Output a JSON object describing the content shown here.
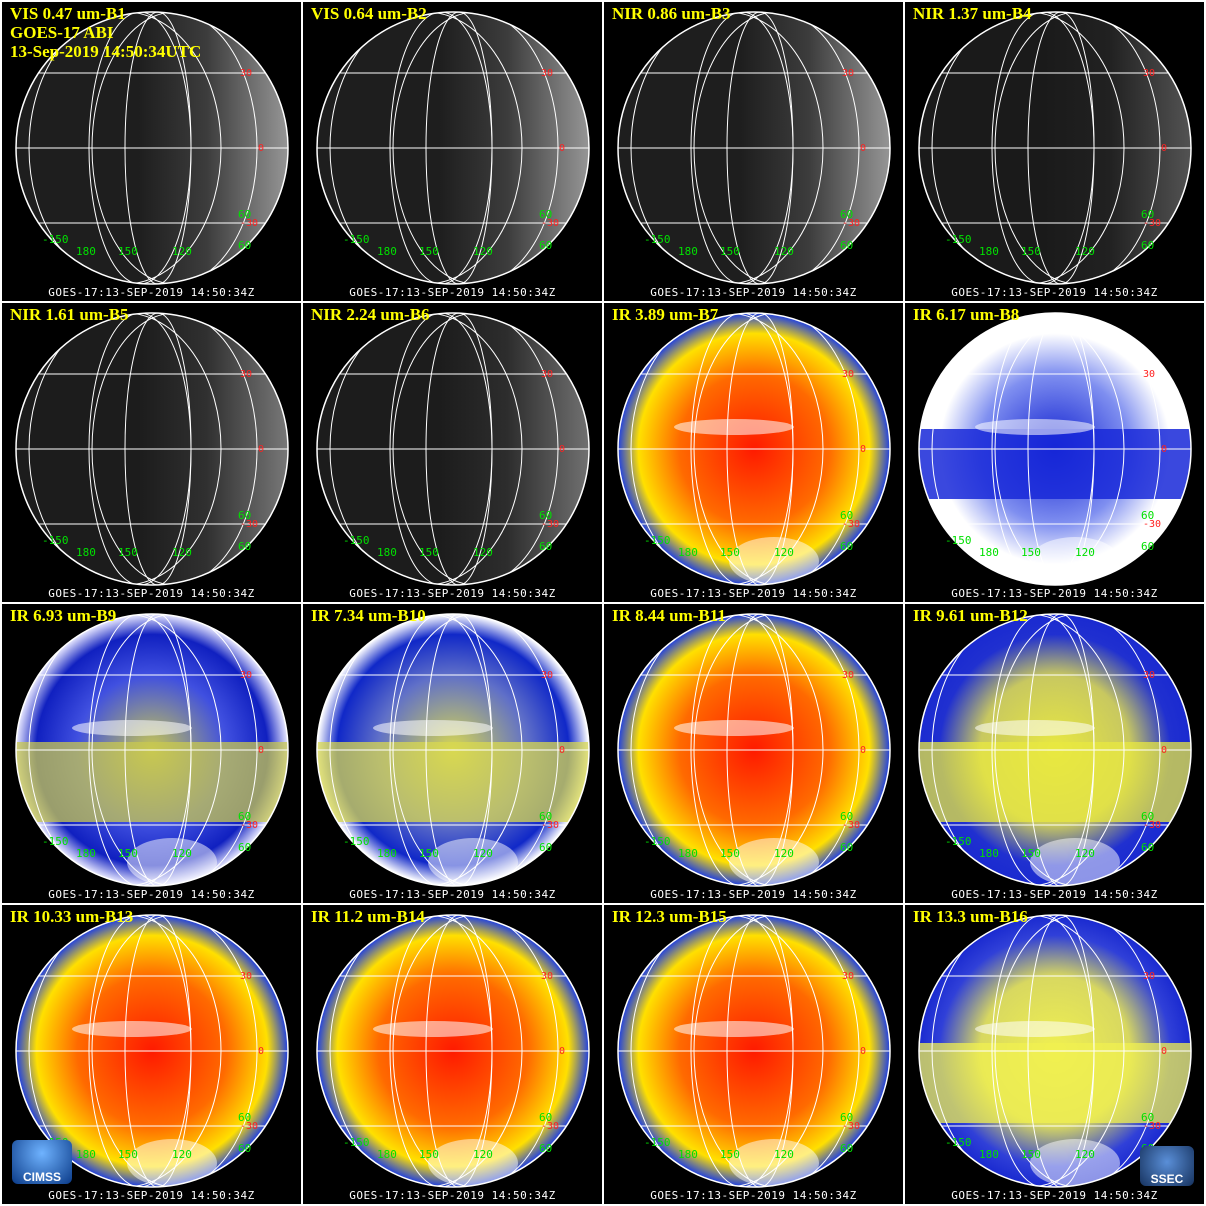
{
  "header": {
    "instrument": "GOES-17 ABI",
    "datetime": "13-Sep-2019 14:50:34UTC"
  },
  "panels": [
    {
      "title": "VIS 0.47 um-B1",
      "style": "vis",
      "brightness": 1.0
    },
    {
      "title": "VIS 0.64 um-B2",
      "style": "vis",
      "brightness": 1.0
    },
    {
      "title": "NIR 0.86 um-B3",
      "style": "vis",
      "brightness": 1.0
    },
    {
      "title": "NIR 1.37 um-B4",
      "style": "vis",
      "brightness": 0.55
    },
    {
      "title": "NIR 1.61 um-B5",
      "style": "vis",
      "brightness": 0.8
    },
    {
      "title": "NIR 2.24 um-B6",
      "style": "vis",
      "brightness": 0.75
    },
    {
      "title": "IR 3.89 um-B7",
      "style": "ir_warm"
    },
    {
      "title": "IR 6.17 um-B8",
      "style": "wv_high"
    },
    {
      "title": "IR 6.93 um-B9",
      "style": "wv_mid"
    },
    {
      "title": "IR 7.34 um-B10",
      "style": "wv_low"
    },
    {
      "title": "IR 8.44 um-B11",
      "style": "ir_warm"
    },
    {
      "title": "IR 9.61 um-B12",
      "style": "ozone"
    },
    {
      "title": "IR 10.33 um-B13",
      "style": "ir_warm"
    },
    {
      "title": "IR 11.2 um-B14",
      "style": "ir_warm"
    },
    {
      "title": "IR 12.3 um-B15",
      "style": "ir_warm"
    },
    {
      "title": "IR 13.3 um-B16",
      "style": "co2"
    }
  ],
  "footer_text": "GOES-17:13-SEP-2019 14:50:34Z",
  "lat_labels": [
    "30",
    "0",
    "-30"
  ],
  "lon_labels": [
    "-150",
    "180",
    "150",
    "120",
    "60",
    "60"
  ],
  "logos": {
    "left": "CIMSS",
    "right": "SSEC"
  },
  "colors": {
    "title": "#ffff00",
    "lat": "#ff2020",
    "lon": "#00e000",
    "grid": "#ffffff"
  }
}
